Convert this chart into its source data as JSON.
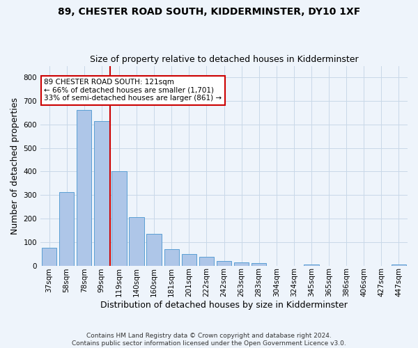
{
  "title": "89, CHESTER ROAD SOUTH, KIDDERMINSTER, DY10 1XF",
  "subtitle": "Size of property relative to detached houses in Kidderminster",
  "xlabel": "Distribution of detached houses by size in Kidderminster",
  "ylabel": "Number of detached properties",
  "categories": [
    "37sqm",
    "58sqm",
    "78sqm",
    "99sqm",
    "119sqm",
    "140sqm",
    "160sqm",
    "181sqm",
    "201sqm",
    "222sqm",
    "242sqm",
    "263sqm",
    "283sqm",
    "304sqm",
    "324sqm",
    "345sqm",
    "365sqm",
    "386sqm",
    "406sqm",
    "427sqm",
    "447sqm"
  ],
  "values": [
    75,
    313,
    663,
    615,
    400,
    205,
    135,
    70,
    48,
    38,
    20,
    12,
    10,
    0,
    0,
    5,
    0,
    0,
    0,
    0,
    5
  ],
  "bar_color": "#aec6e8",
  "bar_edge_color": "#5a9fd4",
  "grid_color": "#c8d8e8",
  "background_color": "#eef4fb",
  "vline_x": 3.5,
  "vline_color": "#cc0000",
  "annotation_text": "89 CHESTER ROAD SOUTH: 121sqm\n← 66% of detached houses are smaller (1,701)\n33% of semi-detached houses are larger (861) →",
  "annotation_box_color": "#ffffff",
  "annotation_box_edge": "#cc0000",
  "footer": "Contains HM Land Registry data © Crown copyright and database right 2024.\nContains public sector information licensed under the Open Government Licence v3.0.",
  "ylim": [
    0,
    850
  ],
  "yticks": [
    0,
    100,
    200,
    300,
    400,
    500,
    600,
    700,
    800
  ],
  "figsize": [
    6.0,
    5.0
  ],
  "dpi": 100,
  "title_fontsize": 10,
  "subtitle_fontsize": 9,
  "ylabel_fontsize": 9,
  "xlabel_fontsize": 9,
  "tick_fontsize": 7.5,
  "annotation_fontsize": 7.5,
  "footer_fontsize": 6.5
}
